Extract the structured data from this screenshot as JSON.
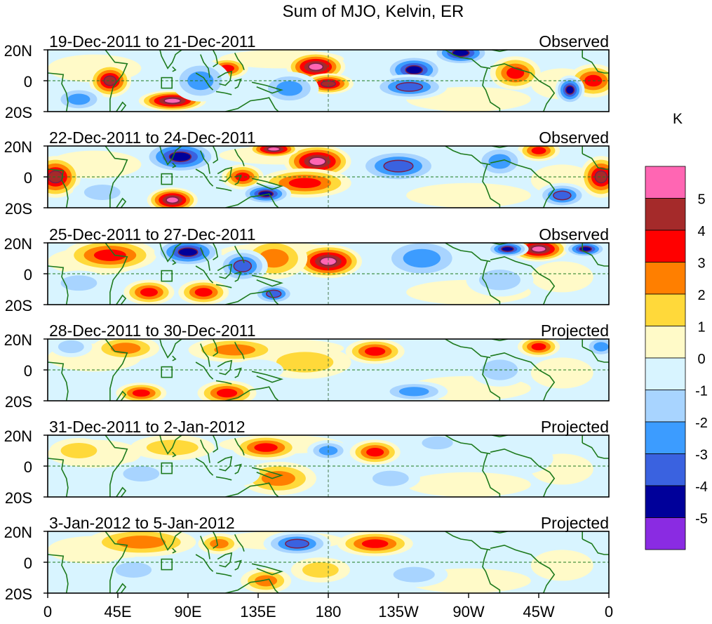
{
  "chart_data": {
    "type": "heatmap",
    "title": "Sum of MJO, Kelvin, ER",
    "units_label": "K",
    "lon_tick_labels": [
      "0",
      "45E",
      "90E",
      "135E",
      "180",
      "135W",
      "90W",
      "45W",
      "0"
    ],
    "lon_ticks_deg": [
      0,
      45,
      90,
      135,
      180,
      225,
      270,
      315,
      360
    ],
    "lat_tick_labels": [
      "20N",
      "0",
      "20S"
    ],
    "lat_range": [
      -20,
      20
    ],
    "lon_range": [
      0,
      360
    ],
    "colorbar": {
      "levels": [
        "5",
        "4",
        "3",
        "2",
        "1",
        "0",
        "-1",
        "-2",
        "-3",
        "-4",
        "-5"
      ],
      "colors": [
        "#ff66b3",
        "#a52a2a",
        "#ff0000",
        "#ff7f00",
        "#ffd93a",
        "#fffac8",
        "#d8f4ff",
        "#a8d4ff",
        "#3c9cff",
        "#3a62e0",
        "#00009a",
        "#8a2be2"
      ]
    },
    "panels": [
      {
        "date_range": "19-Dec-2011 to 21-Dec-2011",
        "status": "Observed",
        "blobs": [
          {
            "lon": 172,
            "lat": 9,
            "value": 5,
            "rx": 14,
            "ry": 7
          },
          {
            "lon": 180,
            "lat": -2,
            "value": 4,
            "rx": 12,
            "ry": 5
          },
          {
            "lon": 80,
            "lat": -13,
            "value": 5,
            "rx": 16,
            "ry": 5
          },
          {
            "lon": 40,
            "lat": 0,
            "value": 4,
            "rx": 10,
            "ry": 8
          },
          {
            "lon": 115,
            "lat": 8,
            "value": 3,
            "rx": 10,
            "ry": 5
          },
          {
            "lon": 350,
            "lat": 0,
            "value": 3,
            "rx": 12,
            "ry": 8
          },
          {
            "lon": 300,
            "lat": 5,
            "value": 3,
            "rx": 12,
            "ry": 8
          },
          {
            "lon": 98,
            "lat": 0,
            "value": -3,
            "rx": 14,
            "ry": 10
          },
          {
            "lon": 235,
            "lat": 7,
            "value": -5,
            "rx": 14,
            "ry": 7
          },
          {
            "lon": 232,
            "lat": -4,
            "value": -4,
            "rx": 18,
            "ry": 6
          },
          {
            "lon": 265,
            "lat": 18,
            "value": -5,
            "rx": 14,
            "ry": 6
          },
          {
            "lon": 155,
            "lat": -5,
            "value": -3,
            "rx": 14,
            "ry": 8
          },
          {
            "lon": 335,
            "lat": -6,
            "value": -5,
            "rx": 7,
            "ry": 7
          },
          {
            "lon": 20,
            "lat": -12,
            "value": -3,
            "rx": 12,
            "ry": 6
          }
        ]
      },
      {
        "date_range": "22-Dec-2011 to 24-Dec-2011",
        "status": "Observed",
        "blobs": [
          {
            "lon": 173,
            "lat": 10,
            "value": 5,
            "rx": 16,
            "ry": 8
          },
          {
            "lon": 80,
            "lat": -15,
            "value": 5,
            "rx": 12,
            "ry": 6
          },
          {
            "lon": 145,
            "lat": 18,
            "value": 5,
            "rx": 12,
            "ry": 4
          },
          {
            "lon": 165,
            "lat": -4,
            "value": 3,
            "rx": 22,
            "ry": 7
          },
          {
            "lon": 5,
            "lat": 0,
            "value": 4,
            "rx": 12,
            "ry": 10
          },
          {
            "lon": 355,
            "lat": 0,
            "value": 4,
            "rx": 10,
            "ry": 10
          },
          {
            "lon": 315,
            "lat": 17,
            "value": 3,
            "rx": 10,
            "ry": 5
          },
          {
            "lon": 125,
            "lat": 0,
            "value": 3,
            "rx": 10,
            "ry": 6
          },
          {
            "lon": 85,
            "lat": 13,
            "value": -5,
            "rx": 18,
            "ry": 8
          },
          {
            "lon": 140,
            "lat": -11,
            "value": -5,
            "rx": 12,
            "ry": 5
          },
          {
            "lon": 225,
            "lat": 7,
            "value": -4,
            "rx": 20,
            "ry": 8
          },
          {
            "lon": 290,
            "lat": 10,
            "value": -3,
            "rx": 12,
            "ry": 8
          },
          {
            "lon": 330,
            "lat": -12,
            "value": -4,
            "rx": 12,
            "ry": 6
          },
          {
            "lon": 35,
            "lat": -10,
            "value": -2,
            "rx": 14,
            "ry": 6
          }
        ]
      },
      {
        "date_range": "25-Dec-2011 to 27-Dec-2011",
        "status": "Observed",
        "blobs": [
          {
            "lon": 180,
            "lat": 8,
            "value": 5,
            "rx": 16,
            "ry": 8
          },
          {
            "lon": 315,
            "lat": 16,
            "value": 5,
            "rx": 14,
            "ry": 6
          },
          {
            "lon": 40,
            "lat": 12,
            "value": 3,
            "rx": 22,
            "ry": 8
          },
          {
            "lon": 65,
            "lat": -12,
            "value": 3,
            "rx": 12,
            "ry": 6
          },
          {
            "lon": 100,
            "lat": -12,
            "value": 3,
            "rx": 12,
            "ry": 6
          },
          {
            "lon": 145,
            "lat": 10,
            "value": 2,
            "rx": 16,
            "ry": 10
          },
          {
            "lon": 90,
            "lat": 14,
            "value": -5,
            "rx": 16,
            "ry": 7
          },
          {
            "lon": 125,
            "lat": 5,
            "value": -4,
            "rx": 12,
            "ry": 8
          },
          {
            "lon": 145,
            "lat": -13,
            "value": -4,
            "rx": 10,
            "ry": 5
          },
          {
            "lon": 240,
            "lat": 10,
            "value": -3,
            "rx": 20,
            "ry": 10
          },
          {
            "lon": 295,
            "lat": 16,
            "value": -5,
            "rx": 10,
            "ry": 4
          },
          {
            "lon": 345,
            "lat": 16,
            "value": -5,
            "rx": 10,
            "ry": 4
          },
          {
            "lon": 290,
            "lat": -4,
            "value": -2,
            "rx": 16,
            "ry": 8
          },
          {
            "lon": 20,
            "lat": -6,
            "value": -2,
            "rx": 14,
            "ry": 6
          }
        ]
      },
      {
        "date_range": "28-Dec-2011 to 30-Dec-2011",
        "status": "Projected",
        "blobs": [
          {
            "lon": 210,
            "lat": 12,
            "value": 3,
            "rx": 14,
            "ry": 6
          },
          {
            "lon": 315,
            "lat": 15,
            "value": 3,
            "rx": 10,
            "ry": 5
          },
          {
            "lon": 50,
            "lat": 14,
            "value": 2,
            "rx": 16,
            "ry": 6
          },
          {
            "lon": 120,
            "lat": 13,
            "value": 2,
            "rx": 22,
            "ry": 6
          },
          {
            "lon": 115,
            "lat": -15,
            "value": 3,
            "rx": 14,
            "ry": 6
          },
          {
            "lon": 60,
            "lat": -15,
            "value": 3,
            "rx": 12,
            "ry": 5
          },
          {
            "lon": 165,
            "lat": 5,
            "value": 1,
            "rx": 22,
            "ry": 8
          },
          {
            "lon": 235,
            "lat": -14,
            "value": -3,
            "rx": 16,
            "ry": 5
          },
          {
            "lon": 290,
            "lat": 0,
            "value": -2,
            "rx": 14,
            "ry": 8
          },
          {
            "lon": 355,
            "lat": 15,
            "value": -3,
            "rx": 8,
            "ry": 5
          },
          {
            "lon": 15,
            "lat": 15,
            "value": -2,
            "rx": 10,
            "ry": 5
          },
          {
            "lon": 135,
            "lat": 0,
            "value": -1,
            "rx": 12,
            "ry": 5
          }
        ]
      },
      {
        "date_range": "31-Dec-2011 to 2-Jan-2012",
        "status": "Projected",
        "blobs": [
          {
            "lon": 140,
            "lat": 12,
            "value": 3,
            "rx": 16,
            "ry": 6
          },
          {
            "lon": 148,
            "lat": -8,
            "value": 2,
            "rx": 18,
            "ry": 8
          },
          {
            "lon": 210,
            "lat": 9,
            "value": 3,
            "rx": 12,
            "ry": 6
          },
          {
            "lon": 80,
            "lat": 12,
            "value": 1,
            "rx": 20,
            "ry": 6
          },
          {
            "lon": 20,
            "lat": 10,
            "value": 1,
            "rx": 14,
            "ry": 6
          },
          {
            "lon": 180,
            "lat": 10,
            "value": -3,
            "rx": 10,
            "ry": 5
          },
          {
            "lon": 60,
            "lat": -5,
            "value": -2,
            "rx": 14,
            "ry": 6
          },
          {
            "lon": 220,
            "lat": -8,
            "value": -2,
            "rx": 14,
            "ry": 6
          },
          {
            "lon": 120,
            "lat": -5,
            "value": -1,
            "rx": 12,
            "ry": 6
          },
          {
            "lon": 300,
            "lat": 5,
            "value": -1,
            "rx": 18,
            "ry": 8
          },
          {
            "lon": 250,
            "lat": 15,
            "value": -2,
            "rx": 12,
            "ry": 5
          }
        ]
      },
      {
        "date_range": "3-Jan-2012 to 5-Jan-2012",
        "status": "Projected",
        "blobs": [
          {
            "lon": 210,
            "lat": 12,
            "value": 3,
            "rx": 18,
            "ry": 6
          },
          {
            "lon": 60,
            "lat": 13,
            "value": 2,
            "rx": 26,
            "ry": 7
          },
          {
            "lon": 110,
            "lat": 12,
            "value": 2,
            "rx": 10,
            "ry": 5
          },
          {
            "lon": 140,
            "lat": -12,
            "value": 2,
            "rx": 12,
            "ry": 6
          },
          {
            "lon": 175,
            "lat": -5,
            "value": 1,
            "rx": 14,
            "ry": 6
          },
          {
            "lon": 160,
            "lat": 12,
            "value": -4,
            "rx": 16,
            "ry": 6
          },
          {
            "lon": 55,
            "lat": -5,
            "value": -2,
            "rx": 14,
            "ry": 6
          },
          {
            "lon": 235,
            "lat": -8,
            "value": -2,
            "rx": 16,
            "ry": 6
          },
          {
            "lon": 290,
            "lat": 10,
            "value": -1,
            "rx": 18,
            "ry": 8
          },
          {
            "lon": 90,
            "lat": 0,
            "value": -1,
            "rx": 10,
            "ry": 5
          }
        ]
      }
    ]
  }
}
